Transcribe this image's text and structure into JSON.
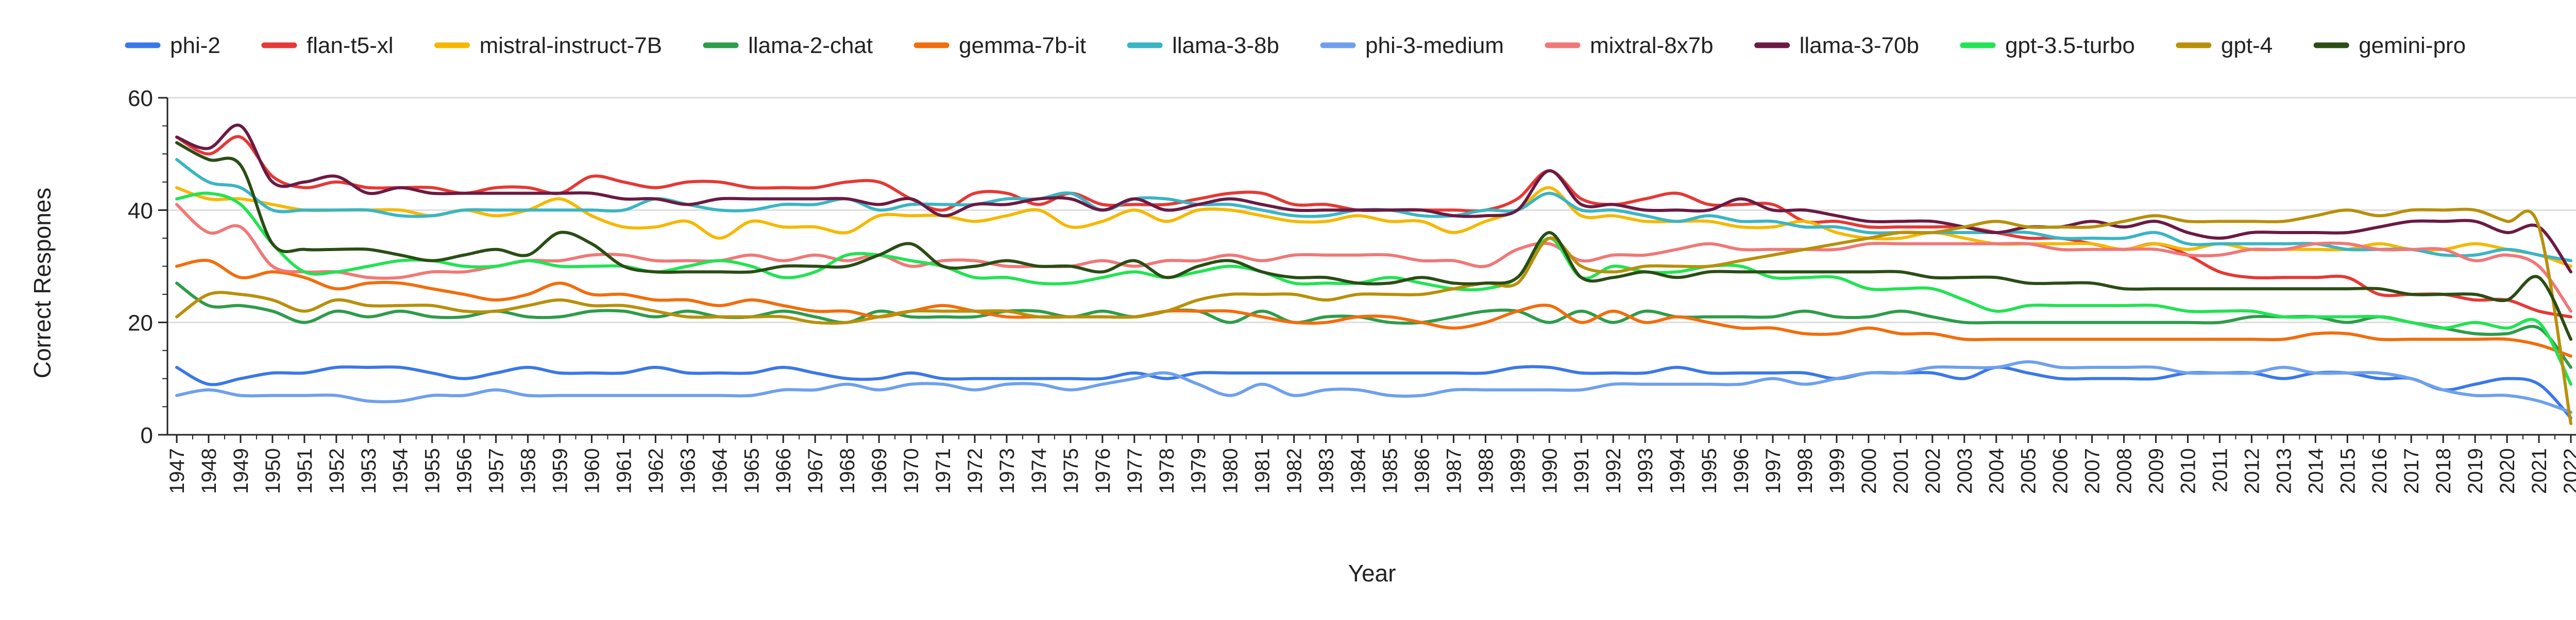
{
  "chart_data": {
    "type": "line",
    "title": "",
    "xlabel": "Year",
    "ylabel": "Correct Respones",
    "ylim": [
      0,
      60
    ],
    "yticks": [
      0,
      20,
      40,
      60
    ],
    "grid": true,
    "legend_placement": "top",
    "x": [
      1947,
      1948,
      1949,
      1950,
      1951,
      1952,
      1953,
      1954,
      1955,
      1956,
      1957,
      1958,
      1959,
      1960,
      1961,
      1962,
      1963,
      1964,
      1965,
      1966,
      1967,
      1968,
      1969,
      1970,
      1971,
      1972,
      1973,
      1974,
      1975,
      1976,
      1977,
      1978,
      1979,
      1980,
      1981,
      1982,
      1983,
      1984,
      1985,
      1986,
      1987,
      1988,
      1989,
      1990,
      1991,
      1992,
      1993,
      1994,
      1995,
      1996,
      1997,
      1998,
      1999,
      2000,
      2001,
      2002,
      2003,
      2004,
      2005,
      2006,
      2007,
      2008,
      2009,
      2010,
      2011,
      2012,
      2013,
      2014,
      2015,
      2016,
      2017,
      2018,
      2019,
      2020,
      2021,
      2022
    ],
    "series": [
      {
        "name": "phi-2",
        "color": "#3b78e7",
        "values": [
          12,
          9,
          10,
          11,
          11,
          12,
          12,
          12,
          11,
          10,
          11,
          12,
          11,
          11,
          11,
          12,
          11,
          11,
          11,
          12,
          11,
          10,
          10,
          11,
          10,
          10,
          10,
          10,
          10,
          10,
          11,
          10,
          11,
          11,
          11,
          11,
          11,
          11,
          11,
          11,
          11,
          11,
          12,
          12,
          11,
          11,
          11,
          12,
          11,
          11,
          11,
          11,
          10,
          11,
          11,
          11,
          10,
          12,
          11,
          10,
          10,
          10,
          10,
          11,
          11,
          11,
          10,
          11,
          11,
          10,
          10,
          8,
          9,
          10,
          9,
          3
        ]
      },
      {
        "name": "flan-t5-xl",
        "color": "#e53935",
        "values": [
          53,
          50,
          53,
          46,
          44,
          45,
          44,
          44,
          44,
          43,
          44,
          44,
          43,
          46,
          45,
          44,
          45,
          45,
          44,
          44,
          44,
          45,
          45,
          42,
          40,
          43,
          43,
          41,
          43,
          41,
          41,
          41,
          42,
          43,
          43,
          41,
          41,
          40,
          40,
          40,
          40,
          40,
          42,
          47,
          42,
          41,
          42,
          43,
          41,
          41,
          41,
          38,
          38,
          37,
          37,
          37,
          37,
          36,
          35,
          35,
          34,
          33,
          34,
          32,
          29,
          28,
          28,
          28,
          28,
          25,
          25,
          25,
          24,
          24,
          22,
          21
        ]
      },
      {
        "name": "mistral-instruct-7B",
        "color": "#f5b800",
        "values": [
          44,
          42,
          42,
          41,
          40,
          40,
          40,
          40,
          39,
          40,
          39,
          40,
          42,
          39,
          37,
          37,
          38,
          35,
          38,
          37,
          37,
          36,
          39,
          39,
          39,
          38,
          39,
          40,
          37,
          38,
          40,
          38,
          40,
          40,
          39,
          38,
          38,
          39,
          38,
          38,
          36,
          38,
          40,
          44,
          39,
          39,
          38,
          38,
          38,
          37,
          37,
          38,
          36,
          35,
          35,
          36,
          35,
          34,
          34,
          34,
          34,
          33,
          34,
          33,
          34,
          33,
          33,
          33,
          33,
          34,
          33,
          33,
          34,
          33,
          32,
          30
        ]
      },
      {
        "name": "llama-2-chat",
        "color": "#2e9c4a",
        "values": [
          27,
          23,
          23,
          22,
          20,
          22,
          21,
          22,
          21,
          21,
          22,
          21,
          21,
          22,
          22,
          21,
          22,
          21,
          21,
          22,
          21,
          20,
          22,
          21,
          21,
          21,
          22,
          22,
          21,
          22,
          21,
          22,
          22,
          20,
          22,
          20,
          21,
          21,
          20,
          20,
          21,
          22,
          22,
          20,
          22,
          20,
          22,
          21,
          21,
          21,
          21,
          22,
          21,
          21,
          22,
          21,
          20,
          20,
          20,
          20,
          20,
          20,
          20,
          20,
          20,
          21,
          21,
          21,
          20,
          21,
          20,
          19,
          18,
          18,
          19,
          12
        ]
      },
      {
        "name": "gemma-7b-it",
        "color": "#f26d0c",
        "values": [
          30,
          31,
          28,
          29,
          28,
          26,
          27,
          27,
          26,
          25,
          24,
          25,
          27,
          25,
          25,
          24,
          24,
          23,
          24,
          23,
          22,
          22,
          21,
          22,
          23,
          22,
          21,
          21,
          21,
          21,
          21,
          22,
          22,
          22,
          21,
          20,
          20,
          21,
          21,
          20,
          19,
          20,
          22,
          23,
          20,
          22,
          20,
          21,
          20,
          19,
          19,
          18,
          18,
          19,
          18,
          18,
          17,
          17,
          17,
          17,
          17,
          17,
          17,
          17,
          17,
          17,
          17,
          18,
          18,
          17,
          17,
          17,
          17,
          17,
          16,
          14
        ]
      },
      {
        "name": "llama-3-8b",
        "color": "#3ab5c4",
        "values": [
          49,
          45,
          44,
          40,
          40,
          40,
          40,
          39,
          39,
          40,
          40,
          40,
          40,
          40,
          40,
          42,
          41,
          40,
          40,
          41,
          41,
          42,
          40,
          41,
          41,
          41,
          42,
          42,
          43,
          40,
          42,
          42,
          41,
          41,
          40,
          39,
          39,
          40,
          40,
          39,
          39,
          40,
          40,
          43,
          40,
          40,
          39,
          38,
          39,
          38,
          38,
          37,
          37,
          36,
          36,
          36,
          36,
          36,
          36,
          35,
          35,
          35,
          36,
          34,
          34,
          34,
          34,
          34,
          33,
          33,
          33,
          32,
          32,
          33,
          32,
          31
        ]
      },
      {
        "name": "phi-3-medium",
        "color": "#6fa0ee",
        "values": [
          7,
          8,
          7,
          7,
          7,
          7,
          6,
          6,
          7,
          7,
          8,
          7,
          7,
          7,
          7,
          7,
          7,
          7,
          7,
          8,
          8,
          9,
          8,
          9,
          9,
          8,
          9,
          9,
          8,
          9,
          10,
          11,
          9,
          7,
          9,
          7,
          8,
          8,
          7,
          7,
          8,
          8,
          8,
          8,
          8,
          9,
          9,
          9,
          9,
          9,
          10,
          9,
          10,
          11,
          11,
          12,
          12,
          12,
          13,
          12,
          12,
          12,
          12,
          11,
          11,
          11,
          12,
          11,
          11,
          11,
          10,
          8,
          7,
          7,
          6,
          4
        ]
      },
      {
        "name": "mixtral-8x7b",
        "color": "#f07878",
        "values": [
          41,
          36,
          37,
          30,
          29,
          29,
          28,
          28,
          29,
          29,
          30,
          31,
          31,
          32,
          32,
          31,
          31,
          31,
          32,
          31,
          32,
          31,
          32,
          30,
          31,
          31,
          30,
          30,
          30,
          31,
          30,
          31,
          31,
          32,
          31,
          32,
          32,
          32,
          32,
          31,
          31,
          30,
          33,
          34,
          31,
          32,
          32,
          33,
          34,
          33,
          33,
          33,
          33,
          34,
          34,
          34,
          34,
          34,
          34,
          33,
          33,
          33,
          33,
          32,
          32,
          33,
          33,
          34,
          34,
          33,
          33,
          33,
          31,
          32,
          30,
          22
        ]
      },
      {
        "name": "llama-3-70b",
        "color": "#6b1a43",
        "values": [
          53,
          51,
          55,
          45,
          45,
          46,
          43,
          44,
          43,
          43,
          43,
          43,
          43,
          43,
          42,
          42,
          41,
          42,
          42,
          42,
          42,
          42,
          41,
          42,
          39,
          41,
          41,
          42,
          42,
          40,
          42,
          40,
          41,
          42,
          41,
          40,
          40,
          40,
          40,
          40,
          39,
          39,
          40,
          47,
          41,
          41,
          40,
          40,
          40,
          42,
          40,
          40,
          39,
          38,
          38,
          38,
          37,
          36,
          37,
          37,
          38,
          37,
          38,
          36,
          35,
          36,
          36,
          36,
          36,
          37,
          38,
          38,
          38,
          36,
          37,
          29
        ]
      },
      {
        "name": "gpt-3.5-turbo",
        "color": "#22e353",
        "values": [
          42,
          43,
          41,
          34,
          29,
          29,
          30,
          31,
          31,
          30,
          30,
          31,
          30,
          30,
          30,
          29,
          30,
          31,
          30,
          28,
          29,
          32,
          32,
          31,
          30,
          28,
          28,
          27,
          27,
          28,
          29,
          28,
          29,
          30,
          29,
          27,
          27,
          27,
          28,
          27,
          26,
          26,
          28,
          35,
          28,
          30,
          29,
          29,
          30,
          30,
          28,
          28,
          28,
          26,
          26,
          26,
          24,
          22,
          23,
          23,
          23,
          23,
          23,
          22,
          22,
          22,
          21,
          21,
          21,
          21,
          20,
          19,
          20,
          19,
          20,
          9
        ]
      },
      {
        "name": "gpt-4",
        "color": "#b8900a",
        "values": [
          21,
          25,
          25,
          24,
          22,
          24,
          23,
          23,
          23,
          22,
          22,
          23,
          24,
          23,
          23,
          22,
          21,
          21,
          21,
          21,
          20,
          20,
          21,
          22,
          22,
          22,
          22,
          21,
          21,
          21,
          21,
          22,
          24,
          25,
          25,
          25,
          24,
          25,
          25,
          25,
          26,
          27,
          27,
          35,
          30,
          29,
          30,
          30,
          30,
          31,
          32,
          33,
          34,
          35,
          36,
          36,
          37,
          38,
          37,
          37,
          37,
          38,
          39,
          38,
          38,
          38,
          38,
          39,
          40,
          39,
          40,
          40,
          40,
          38,
          37,
          2
        ]
      },
      {
        "name": "gemini-pro",
        "color": "#2a4d14",
        "values": [
          52,
          49,
          48,
          34,
          33,
          33,
          33,
          32,
          31,
          32,
          33,
          32,
          36,
          34,
          30,
          29,
          29,
          29,
          29,
          30,
          30,
          30,
          32,
          34,
          30,
          30,
          31,
          30,
          30,
          29,
          31,
          28,
          30,
          31,
          29,
          28,
          28,
          27,
          27,
          28,
          27,
          27,
          28,
          36,
          28,
          28,
          29,
          28,
          29,
          29,
          29,
          29,
          29,
          29,
          29,
          28,
          28,
          28,
          27,
          27,
          27,
          26,
          26,
          26,
          26,
          26,
          26,
          26,
          26,
          26,
          25,
          25,
          25,
          24,
          28,
          17
        ]
      }
    ]
  }
}
